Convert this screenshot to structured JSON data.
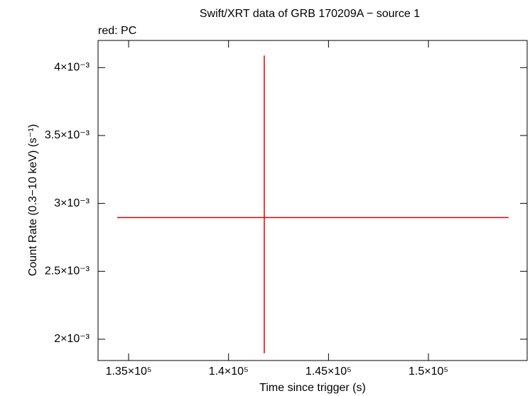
{
  "chart_data": {
    "type": "scatter",
    "title": "Swift/XRT data of GRB 170209A − source 1",
    "subtitle": "red: PC",
    "x_label": "Time since trigger (s)",
    "y_label": "Count Rate (0.3−10 keV) (s⁻¹)",
    "xlim": [
      133470,
      154940
    ],
    "ylim": [
      0.001843,
      0.0042
    ],
    "xticks": [
      {
        "value": 135000,
        "label": "1.35×10⁵"
      },
      {
        "value": 140000,
        "label": "1.4×10⁵"
      },
      {
        "value": 145000,
        "label": "1.45×10⁵"
      },
      {
        "value": 150000,
        "label": "1.5×10⁵"
      }
    ],
    "yticks": [
      {
        "value": 0.002,
        "label": "2×10⁻³"
      },
      {
        "value": 0.0025,
        "label": "2.5×10⁻³"
      },
      {
        "value": 0.003,
        "label": "3×10⁻³"
      },
      {
        "value": 0.0035,
        "label": "3.5×10⁻³"
      },
      {
        "value": 0.004,
        "label": "4×10⁻³"
      }
    ],
    "series": [
      {
        "color": "#e00000",
        "x": [
          141787
        ],
        "values": [
          0.002896
        ],
        "x_low": [
          134431
        ],
        "x_high": [
          154013
        ],
        "y_low": [
          0.0018956
        ],
        "y_high": [
          0.0040888
        ]
      }
    ]
  }
}
